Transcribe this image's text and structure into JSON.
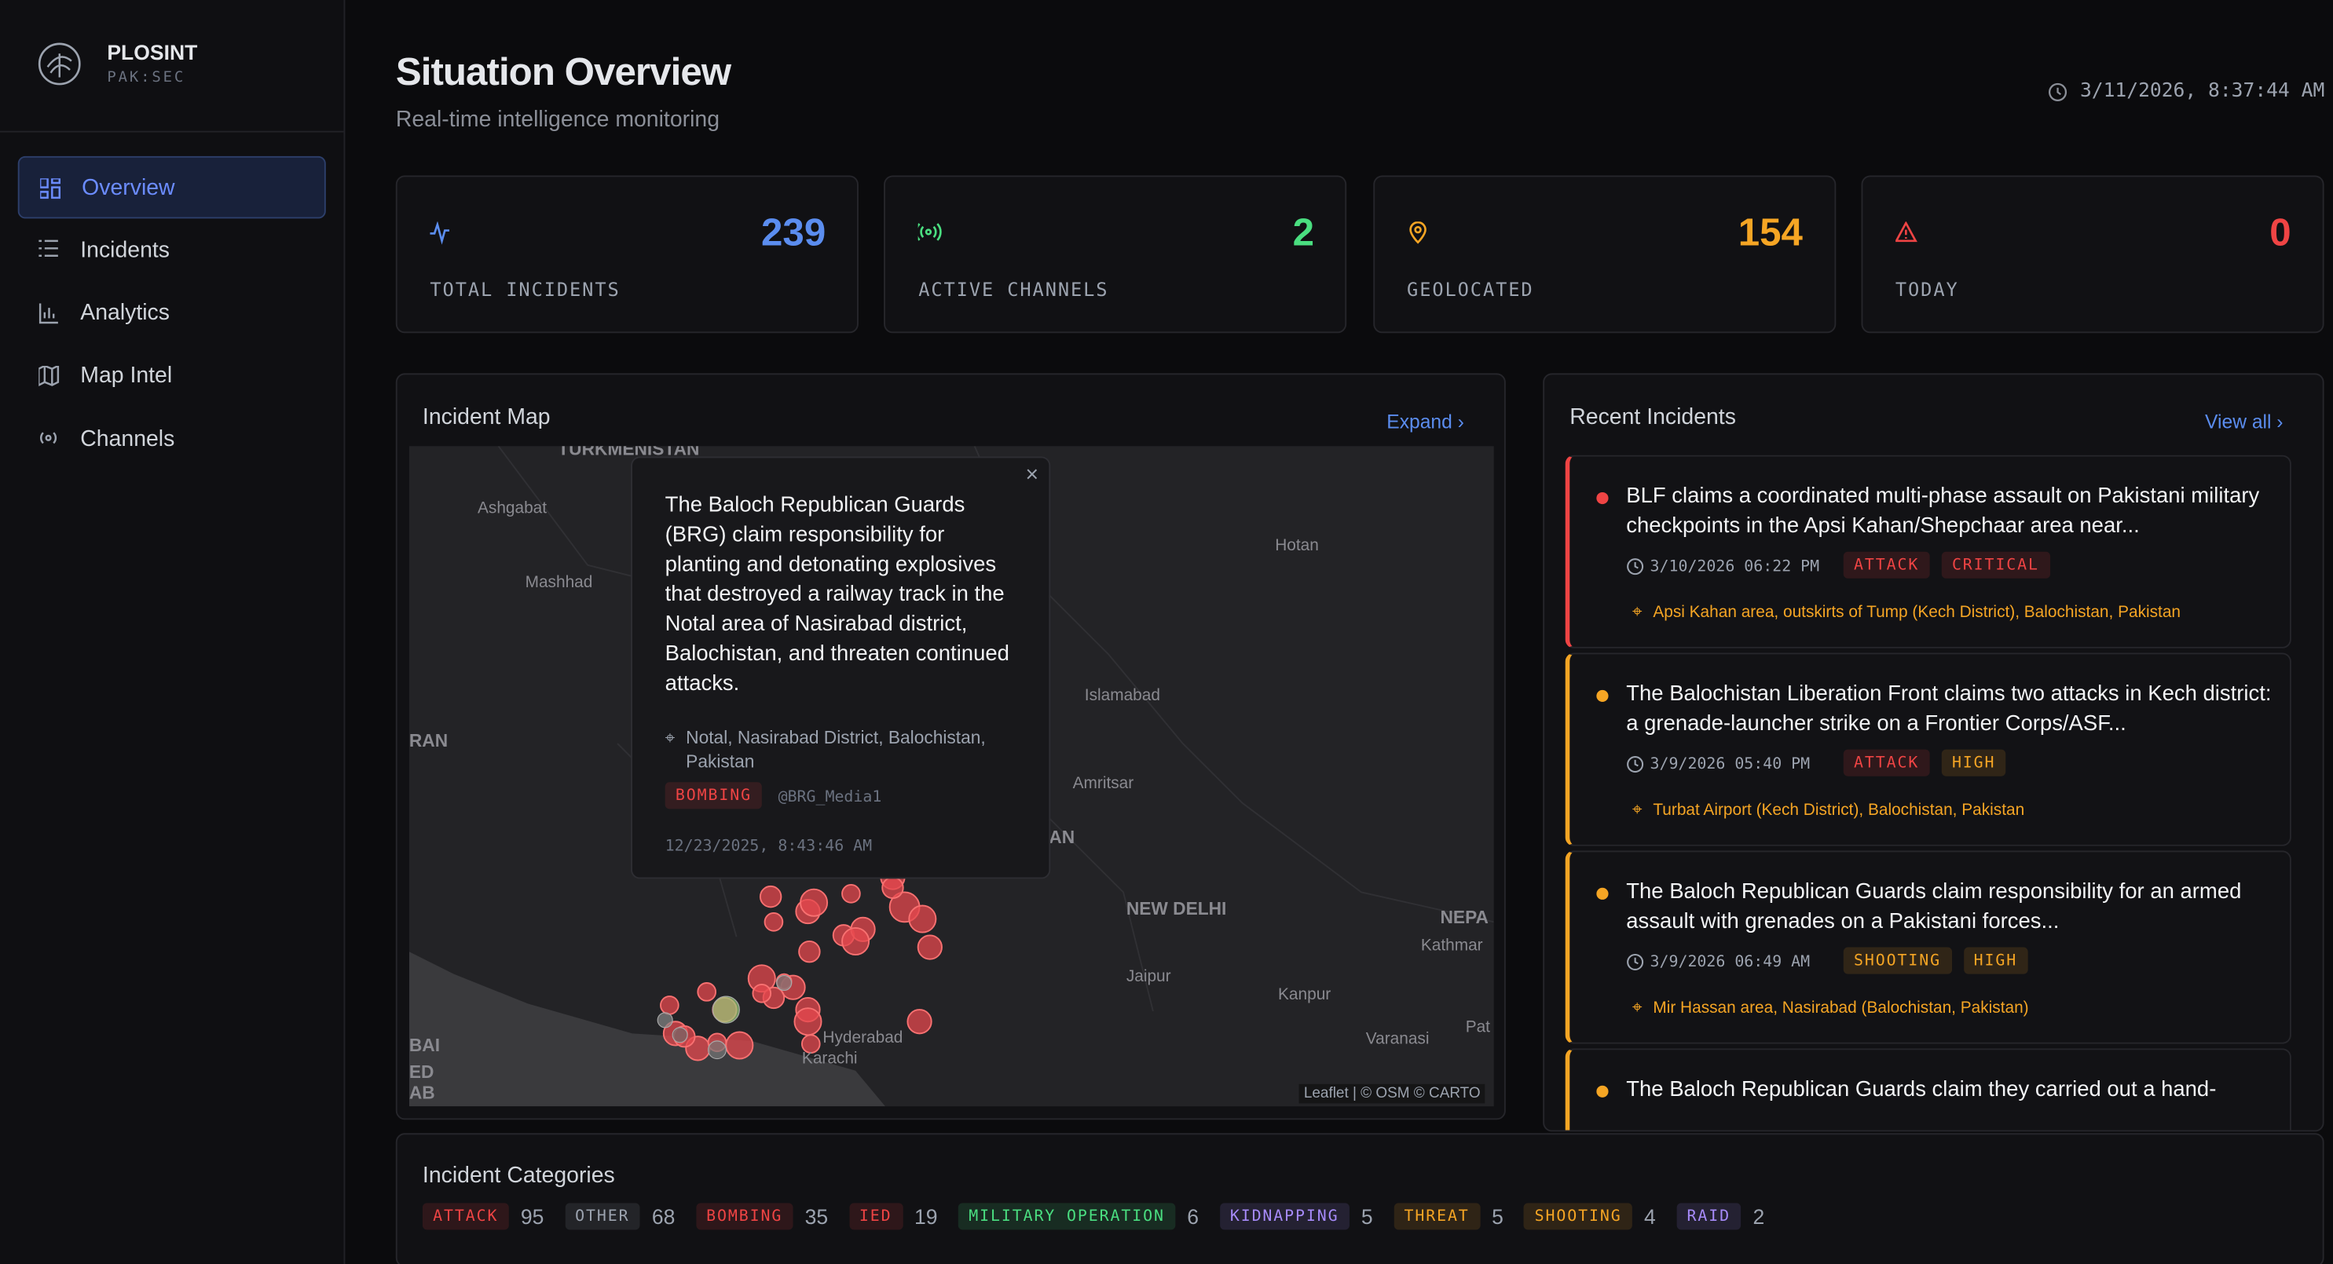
{
  "sidebar": {
    "brand": "PLOSINT",
    "brand_sub": "PAK:SEC",
    "nav": [
      "Overview",
      "Incidents",
      "Analytics",
      "Map Intel",
      "Channels"
    ]
  },
  "header": {
    "title": "Situation Overview",
    "subtitle": "Real-time intelligence monitoring",
    "timestamp": "3/11/2026, 8:37:44 AM"
  },
  "stats": [
    {
      "value": 239,
      "label": "TOTAL INCIDENTS",
      "color": "#5b8def"
    },
    {
      "value": 2,
      "label": "ACTIVE CHANNELS",
      "color": "#4ade80"
    },
    {
      "value": 154,
      "label": "GEOLOCATED",
      "color": "#f5a524"
    },
    {
      "value": 0,
      "label": "TODAY",
      "color": "#ef4444"
    }
  ],
  "map": {
    "title": "Incident Map",
    "expand": "Expand",
    "popup": {
      "text": "The Baloch Republican Guards (BRG) claim responsibility for planting and detonating explosives that destroyed a railway track in the Notal area of Nasirabad district, Balochistan, and threaten continued attacks.",
      "location": "Notal, Nasirabad District, Balochistan, Pakistan",
      "tag": {
        "text": "BOMBING",
        "color": "#ef4444"
      },
      "source": "@BRG_Media1",
      "time": "12/23/2025, 8:43:46 AM"
    },
    "labels": [
      "TURKMENISTAN",
      "Ashgabat",
      "Mashhad",
      "RAN",
      "Hotan",
      "Islamabad",
      "Amritsar",
      "AN",
      "NEW DELHI",
      "NEPA",
      "Kathmar",
      "Jaipur",
      "Kanpur",
      "Varanasi",
      "Pat",
      "Hyderabad",
      "Karachi",
      "BAI",
      "ED",
      "AB"
    ],
    "attribution": "Leaflet | © OSM © CARTO"
  },
  "recent": {
    "title": "Recent Incidents",
    "view_all": "View all",
    "items": [
      {
        "title": "BLF claims a coordinated multi-phase assault on Pakistani military checkpoints in the Apsi Kahan/Shepchaar area near...",
        "time": "3/10/2026 06:22 PM",
        "tags": [
          {
            "text": "ATTACK",
            "color": "#ef4444"
          },
          {
            "text": "CRITICAL",
            "color": "#ef4444"
          }
        ],
        "location": "Apsi Kahan area, outskirts of Tump (Kech District), Balochistan, Pakistan",
        "color": "#ef4444"
      },
      {
        "title": "The Balochistan Liberation Front claims two attacks in Kech district: a grenade-launcher strike on a Frontier Corps/ASF...",
        "time": "3/9/2026 05:40 PM",
        "tags": [
          {
            "text": "ATTACK",
            "color": "#ef4444"
          },
          {
            "text": "HIGH",
            "color": "#f5a524"
          }
        ],
        "location": "Turbat Airport (Kech District), Balochistan, Pakistan",
        "color": "#f5a524"
      },
      {
        "title": "The Baloch Republican Guards claim responsibility for an armed assault with grenades on a Pakistani forces...",
        "time": "3/9/2026 06:49 AM",
        "tags": [
          {
            "text": "SHOOTING",
            "color": "#f5a524"
          },
          {
            "text": "HIGH",
            "color": "#f5a524"
          }
        ],
        "location": "Mir Hassan area, Nasirabad (Balochistan, Pakistan)",
        "color": "#f5a524"
      },
      {
        "title": "The Baloch Republican Guards claim they carried out a hand-",
        "color": "#f5a524"
      }
    ]
  },
  "categories": {
    "title": "Incident Categories",
    "items": [
      {
        "name": "ATTACK",
        "count": 95,
        "color": "#ef4444"
      },
      {
        "name": "OTHER",
        "count": 68,
        "color": "#9ca3af"
      },
      {
        "name": "BOMBING",
        "count": 35,
        "color": "#ef4444"
      },
      {
        "name": "IED",
        "count": 19,
        "color": "#ef4444"
      },
      {
        "name": "MILITARY OPERATION",
        "count": 6,
        "color": "#4ade80"
      },
      {
        "name": "KIDNAPPING",
        "count": 5,
        "color": "#a78bfa"
      },
      {
        "name": "THREAT",
        "count": 5,
        "color": "#f5a524"
      },
      {
        "name": "SHOOTING",
        "count": 4,
        "color": "#f5a524"
      },
      {
        "name": "RAID",
        "count": 2,
        "color": "#a78bfa"
      }
    ]
  }
}
